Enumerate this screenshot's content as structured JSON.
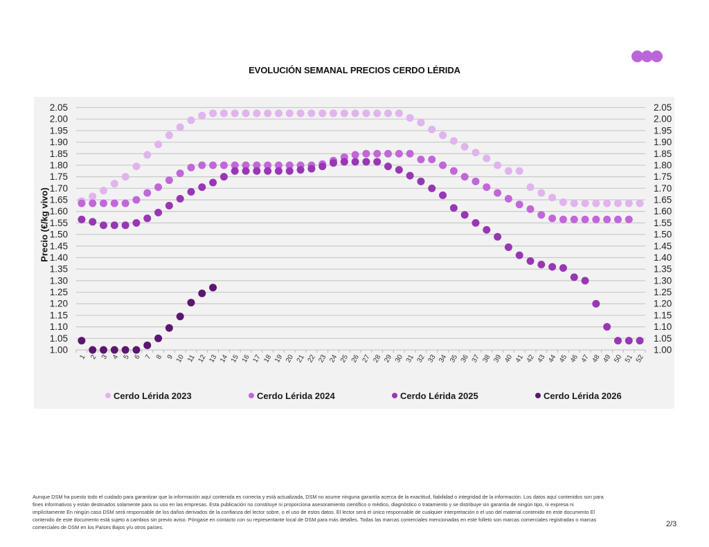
{
  "page": {
    "page_number": "2/3",
    "logo_color": "#bb66d8",
    "disclaimer_lines": [
      "Aunque DSM ha puesto todo el cuidado para garantizar que la información aquí contenida es correcta y está actualizada, DSM no asume ninguna garantía acerca de la exactitud, fiabilidad o integridad de la información. Los datos aquí contenidos son para",
      "fines informativos y están destinados solamente para su uso en las empresas. Esta publicación no constituye ni proporciona asesoramiento científico o médico, diagnóstico o tratamiento y se distribuye sin garantía de ningún tipo, ni expresa ni",
      "implícitamente En ningún caso DSM será responsable de los daños derivados de la confianza del lector sobre, o el uso de estos datos. El lector será el único responsable de cualquier interpretación o el uso del material contenido en este documento El",
      "contenido de este documento está sujeto a cambios sin previo aviso. Póngase en contacto con su representante local de DSM para más detalles. Todas las marcas comerciales mencionadas en este folleto son marcas comerciales registradas o marcas",
      "comerciales de DSM en los Países Bajos y/u otros países."
    ]
  },
  "chart_data": {
    "type": "scatter",
    "title": "EVOLUCIÓN SEMANAL PRECIOS CERDO LÉRIDA",
    "xlabel": "",
    "ylabel": "Precio (€/kg vivo)",
    "ylim": [
      1.0,
      2.05
    ],
    "yticks": [
      "1.00",
      "1.05",
      "1.10",
      "1.15",
      "1.20",
      "1.25",
      "1.30",
      "1.35",
      "1.40",
      "1.45",
      "1.50",
      "1.55",
      "1.60",
      "1.65",
      "1.70",
      "1.75",
      "1.80",
      "1.85",
      "1.90",
      "1.95",
      "2.00",
      "2.05"
    ],
    "y_axis_mirrored_right": true,
    "grid": true,
    "legend_position": "bottom",
    "categories": [
      "1",
      "2",
      "3",
      "4",
      "5",
      "6",
      "7",
      "8",
      "9",
      "10",
      "11",
      "12",
      "13",
      "14",
      "15",
      "16",
      "17",
      "18",
      "19",
      "20",
      "21",
      "22",
      "23",
      "24",
      "25",
      "26",
      "27",
      "28",
      "29",
      "30",
      "31",
      "32",
      "33",
      "34",
      "35",
      "36",
      "37",
      "38",
      "39",
      "40",
      "41",
      "42",
      "43",
      "44",
      "45",
      "46",
      "47",
      "48",
      "49",
      "50",
      "51",
      "52"
    ],
    "gridline_color": "#c9c9c9",
    "series": [
      {
        "name": "Cerdo Lérida 2023",
        "color": "#e0b4ec",
        "values": [
          1.645,
          1.665,
          1.69,
          1.72,
          1.75,
          1.795,
          1.845,
          1.89,
          1.93,
          1.965,
          1.995,
          2.015,
          2.025,
          2.025,
          2.025,
          2.025,
          2.025,
          2.025,
          2.025,
          2.025,
          2.025,
          2.025,
          2.025,
          2.025,
          2.025,
          2.025,
          2.025,
          2.025,
          2.025,
          2.025,
          2.005,
          1.985,
          1.955,
          1.93,
          1.905,
          1.88,
          1.855,
          1.83,
          1.8,
          1.775,
          1.775,
          1.705,
          1.68,
          1.66,
          1.64,
          1.635,
          1.635,
          1.635,
          1.635,
          1.635,
          1.635,
          1.635
        ]
      },
      {
        "name": "Cerdo Lérida 2024",
        "color": "#c266d9",
        "values": [
          1.635,
          1.635,
          1.635,
          1.635,
          1.635,
          1.65,
          1.68,
          1.705,
          1.735,
          1.765,
          1.79,
          1.8,
          1.8,
          1.8,
          1.8,
          1.8,
          1.8,
          1.8,
          1.8,
          1.8,
          1.8,
          1.8,
          1.805,
          1.82,
          1.835,
          1.845,
          1.85,
          1.85,
          1.85,
          1.85,
          1.85,
          1.825,
          1.825,
          1.8,
          1.775,
          1.75,
          1.73,
          1.705,
          1.68,
          1.655,
          1.63,
          1.61,
          1.585,
          1.57,
          1.565,
          1.565,
          1.565,
          1.565,
          1.565,
          1.565,
          1.565,
          null
        ]
      },
      {
        "name": "Cerdo Lérida 2025",
        "color": "#9837b4",
        "values": [
          1.565,
          1.555,
          1.54,
          1.54,
          1.54,
          1.55,
          1.57,
          1.595,
          1.625,
          1.655,
          1.685,
          1.705,
          1.725,
          1.75,
          1.775,
          1.775,
          1.775,
          1.775,
          1.775,
          1.775,
          1.78,
          1.785,
          1.795,
          1.81,
          1.815,
          1.815,
          1.815,
          1.815,
          1.795,
          1.78,
          1.755,
          1.73,
          1.7,
          1.67,
          1.615,
          1.585,
          1.55,
          1.52,
          1.49,
          1.445,
          1.41,
          1.385,
          1.37,
          1.36,
          1.355,
          1.315,
          1.3,
          1.2,
          1.1,
          1.04,
          1.04,
          1.04
        ]
      },
      {
        "name": "Cerdo Lérida 2026",
        "color": "#5b1670",
        "values": [
          1.04,
          1.0,
          1.0,
          1.0,
          1.0,
          1.0,
          1.02,
          1.05,
          1.095,
          1.145,
          1.205,
          1.245,
          1.27
        ]
      }
    ]
  }
}
